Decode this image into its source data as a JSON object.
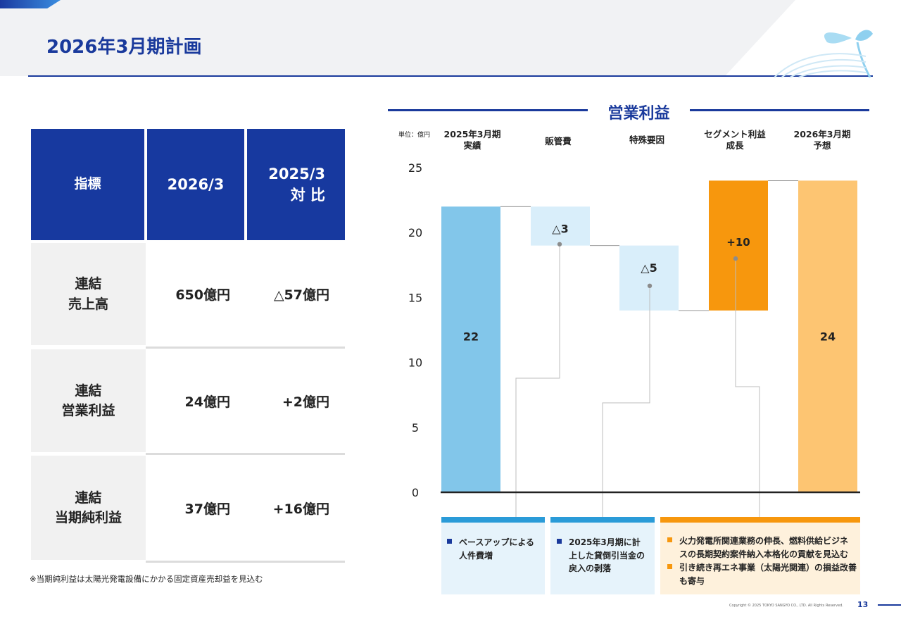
{
  "page": {
    "title": "2026年3月期計画",
    "footnote": "※当期純利益は太陽光発電設備にかかる固定資産売却益を見込む",
    "copyright": "Copyright © 2025 TOKYO SANGYO CO., LTD. All Rights Reserved.",
    "page_number": "13"
  },
  "table": {
    "headers": [
      "指標",
      "2026/3",
      "2025/3\n対 比"
    ],
    "rows": [
      {
        "label": "連結\n売上高",
        "current": "650億円",
        "diff": "△57億円"
      },
      {
        "label": "連結\n営業利益",
        "current": "24億円",
        "diff": "+2億円"
      },
      {
        "label": "連結\n当期純利益",
        "current": "37億円",
        "diff": "+16億円"
      }
    ]
  },
  "chart_data": {
    "type": "bar",
    "title": "営業利益",
    "unit_label": "単位：億円",
    "categories": [
      "2025年3月期\n実績",
      "販管費",
      "特殊要因",
      "セグメント利益\n成長",
      "2026年3月期\n予想"
    ],
    "bars": [
      {
        "start": 0,
        "end": 22,
        "label": "22",
        "color": "#82c6ea"
      },
      {
        "start": 19,
        "end": 22,
        "label": "△3",
        "color": "#d9eefa"
      },
      {
        "start": 14,
        "end": 19,
        "label": "△5",
        "color": "#d9eefa"
      },
      {
        "start": 14,
        "end": 24,
        "label": "+10",
        "color": "#f7970d"
      },
      {
        "start": 0,
        "end": 24,
        "label": "24",
        "color": "#fdc572"
      }
    ],
    "ylim": [
      0,
      25
    ],
    "yticks": [
      "0",
      "5",
      "10",
      "15",
      "20",
      "25"
    ],
    "notes": [
      {
        "items": [
          "ベースアップによる\n人件費増"
        ],
        "color": "#2a9bd8",
        "bullet": "#1a3a9c",
        "bg": "#e6f3fb"
      },
      {
        "items": [
          "2025年3月期に計\n上した貸倒引当金の\n戻入の剥落"
        ],
        "color": "#2a9bd8",
        "bullet": "#1a3a9c",
        "bg": "#e6f3fb"
      },
      {
        "items": [
          "火力発電所関連業務の伸長、燃料供給ビジネ\nスの長期契約案件納入本格化の貢献を見込む",
          "引き続き再エネ事業（太陽光関連）の損益改善\nも寄与"
        ],
        "color": "#f7970d",
        "bullet": "#f7970d",
        "bg": "#fef1dc"
      }
    ]
  }
}
